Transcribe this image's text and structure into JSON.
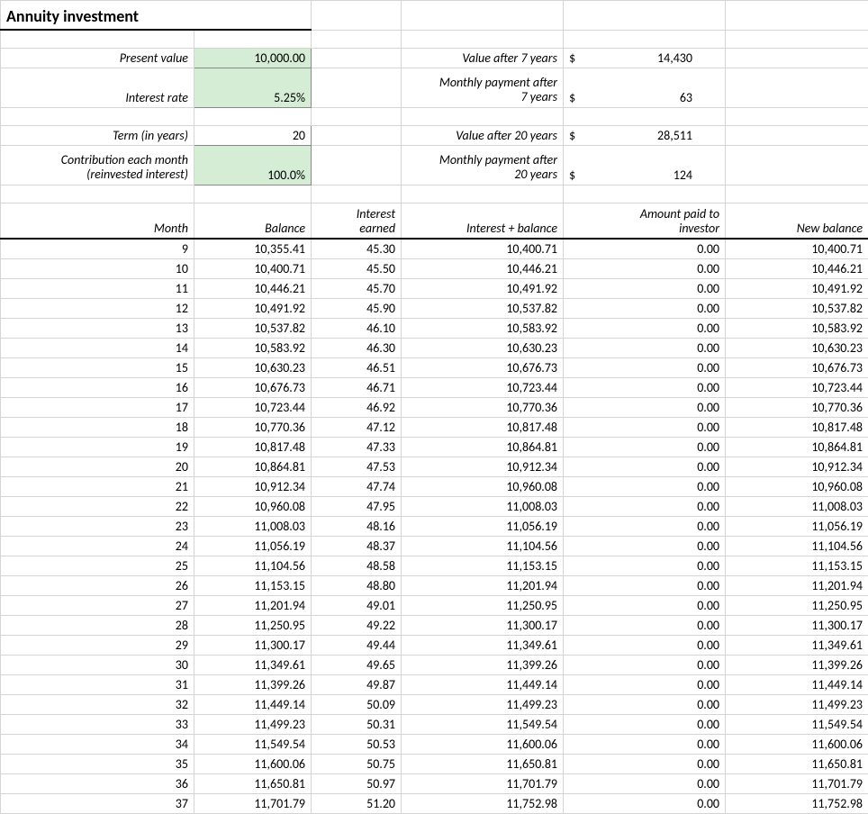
{
  "title": "Annuity investment",
  "inputs": {
    "present_value_label": "Present value",
    "present_value": "10,000.00",
    "interest_rate_label": "Interest rate",
    "interest_rate": "5.25%",
    "term_label": "Term (in years)",
    "term": "20",
    "contribution_label_line1": "Contribution each month",
    "contribution_label_line2": "(reinvested interest)",
    "contribution": "100.0%"
  },
  "outputs": {
    "value_7_label": "Value after 7 years",
    "value_7": "14,430",
    "payment_7_label_line1": "Monthly payment after",
    "payment_7_label_line2": "7 years",
    "payment_7": "63",
    "value_20_label": "Value after 20 years",
    "value_20": "28,511",
    "payment_20_label_line1": "Monthly payment after",
    "payment_20_label_line2": "20 years",
    "payment_20": "124"
  },
  "table": {
    "headers": {
      "month": "Month",
      "balance": "Balance",
      "interest_earned_line1": "Interest",
      "interest_earned_line2": "earned",
      "interest_balance": "Interest + balance",
      "amount_paid_line1": "Amount paid to",
      "amount_paid_line2": "investor",
      "new_balance": "New balance"
    },
    "rows": [
      {
        "month": "9",
        "balance": "10,355.41",
        "interest": "45.30",
        "interest_balance": "10,400.71",
        "paid": "0.00",
        "new_balance": "10,400.71"
      },
      {
        "month": "10",
        "balance": "10,400.71",
        "interest": "45.50",
        "interest_balance": "10,446.21",
        "paid": "0.00",
        "new_balance": "10,446.21"
      },
      {
        "month": "11",
        "balance": "10,446.21",
        "interest": "45.70",
        "interest_balance": "10,491.92",
        "paid": "0.00",
        "new_balance": "10,491.92"
      },
      {
        "month": "12",
        "balance": "10,491.92",
        "interest": "45.90",
        "interest_balance": "10,537.82",
        "paid": "0.00",
        "new_balance": "10,537.82"
      },
      {
        "month": "13",
        "balance": "10,537.82",
        "interest": "46.10",
        "interest_balance": "10,583.92",
        "paid": "0.00",
        "new_balance": "10,583.92"
      },
      {
        "month": "14",
        "balance": "10,583.92",
        "interest": "46.30",
        "interest_balance": "10,630.23",
        "paid": "0.00",
        "new_balance": "10,630.23"
      },
      {
        "month": "15",
        "balance": "10,630.23",
        "interest": "46.51",
        "interest_balance": "10,676.73",
        "paid": "0.00",
        "new_balance": "10,676.73"
      },
      {
        "month": "16",
        "balance": "10,676.73",
        "interest": "46.71",
        "interest_balance": "10,723.44",
        "paid": "0.00",
        "new_balance": "10,723.44"
      },
      {
        "month": "17",
        "balance": "10,723.44",
        "interest": "46.92",
        "interest_balance": "10,770.36",
        "paid": "0.00",
        "new_balance": "10,770.36"
      },
      {
        "month": "18",
        "balance": "10,770.36",
        "interest": "47.12",
        "interest_balance": "10,817.48",
        "paid": "0.00",
        "new_balance": "10,817.48"
      },
      {
        "month": "19",
        "balance": "10,817.48",
        "interest": "47.33",
        "interest_balance": "10,864.81",
        "paid": "0.00",
        "new_balance": "10,864.81"
      },
      {
        "month": "20",
        "balance": "10,864.81",
        "interest": "47.53",
        "interest_balance": "10,912.34",
        "paid": "0.00",
        "new_balance": "10,912.34"
      },
      {
        "month": "21",
        "balance": "10,912.34",
        "interest": "47.74",
        "interest_balance": "10,960.08",
        "paid": "0.00",
        "new_balance": "10,960.08"
      },
      {
        "month": "22",
        "balance": "10,960.08",
        "interest": "47.95",
        "interest_balance": "11,008.03",
        "paid": "0.00",
        "new_balance": "11,008.03"
      },
      {
        "month": "23",
        "balance": "11,008.03",
        "interest": "48.16",
        "interest_balance": "11,056.19",
        "paid": "0.00",
        "new_balance": "11,056.19"
      },
      {
        "month": "24",
        "balance": "11,056.19",
        "interest": "48.37",
        "interest_balance": "11,104.56",
        "paid": "0.00",
        "new_balance": "11,104.56"
      },
      {
        "month": "25",
        "balance": "11,104.56",
        "interest": "48.58",
        "interest_balance": "11,153.15",
        "paid": "0.00",
        "new_balance": "11,153.15"
      },
      {
        "month": "26",
        "balance": "11,153.15",
        "interest": "48.80",
        "interest_balance": "11,201.94",
        "paid": "0.00",
        "new_balance": "11,201.94"
      },
      {
        "month": "27",
        "balance": "11,201.94",
        "interest": "49.01",
        "interest_balance": "11,250.95",
        "paid": "0.00",
        "new_balance": "11,250.95"
      },
      {
        "month": "28",
        "balance": "11,250.95",
        "interest": "49.22",
        "interest_balance": "11,300.17",
        "paid": "0.00",
        "new_balance": "11,300.17"
      },
      {
        "month": "29",
        "balance": "11,300.17",
        "interest": "49.44",
        "interest_balance": "11,349.61",
        "paid": "0.00",
        "new_balance": "11,349.61"
      },
      {
        "month": "30",
        "balance": "11,349.61",
        "interest": "49.65",
        "interest_balance": "11,399.26",
        "paid": "0.00",
        "new_balance": "11,399.26"
      },
      {
        "month": "31",
        "balance": "11,399.26",
        "interest": "49.87",
        "interest_balance": "11,449.14",
        "paid": "0.00",
        "new_balance": "11,449.14"
      },
      {
        "month": "32",
        "balance": "11,449.14",
        "interest": "50.09",
        "interest_balance": "11,499.23",
        "paid": "0.00",
        "new_balance": "11,499.23"
      },
      {
        "month": "33",
        "balance": "11,499.23",
        "interest": "50.31",
        "interest_balance": "11,549.54",
        "paid": "0.00",
        "new_balance": "11,549.54"
      },
      {
        "month": "34",
        "balance": "11,549.54",
        "interest": "50.53",
        "interest_balance": "11,600.06",
        "paid": "0.00",
        "new_balance": "11,600.06"
      },
      {
        "month": "35",
        "balance": "11,600.06",
        "interest": "50.75",
        "interest_balance": "11,650.81",
        "paid": "0.00",
        "new_balance": "11,650.81"
      },
      {
        "month": "36",
        "balance": "11,650.81",
        "interest": "50.97",
        "interest_balance": "11,701.79",
        "paid": "0.00",
        "new_balance": "11,701.79"
      },
      {
        "month": "37",
        "balance": "11,701.79",
        "interest": "51.20",
        "interest_balance": "11,752.98",
        "paid": "0.00",
        "new_balance": "11,752.98"
      }
    ]
  }
}
